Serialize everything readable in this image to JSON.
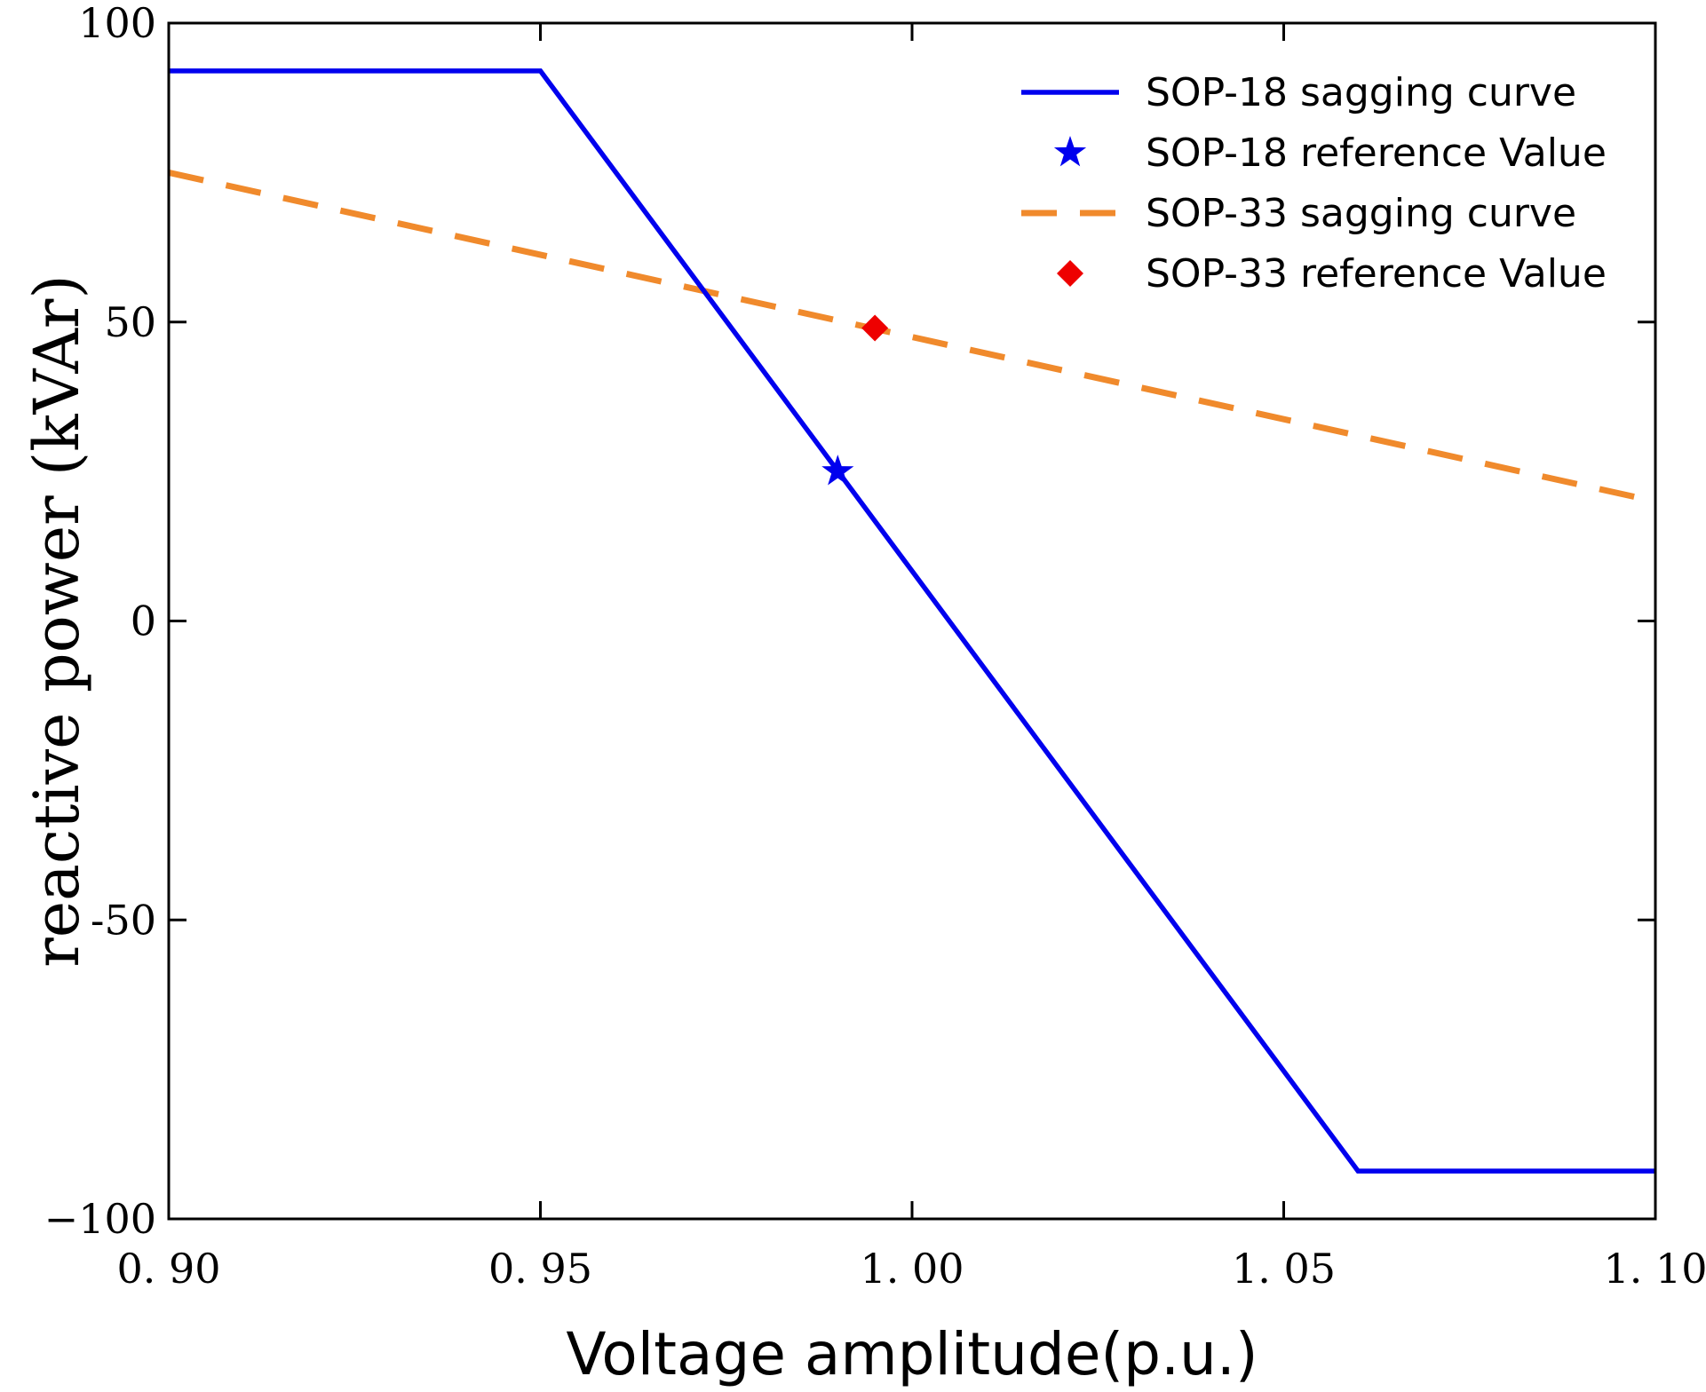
{
  "chart_data": {
    "type": "line",
    "title": "",
    "xlabel": "Voltage amplitude(p.u.)",
    "ylabel": "reactive power (kVAr)",
    "xlim": [
      0.9,
      1.1
    ],
    "ylim": [
      -100,
      100
    ],
    "grid": false,
    "legend_position": "top-right",
    "x_ticks": [
      {
        "value": 0.9,
        "label": "0. 90"
      },
      {
        "value": 0.95,
        "label": "0. 95"
      },
      {
        "value": 1.0,
        "label": "1. 00"
      },
      {
        "value": 1.05,
        "label": "1. 05"
      },
      {
        "value": 1.1,
        "label": "1. 10"
      }
    ],
    "y_ticks": [
      {
        "value": 100,
        "label": "100"
      },
      {
        "value": 50,
        "label": "50"
      },
      {
        "value": 0,
        "label": "0"
      },
      {
        "value": -50,
        "label": "-50"
      },
      {
        "value": -100,
        "label": "−100"
      }
    ],
    "series": [
      {
        "name": "SOP-18 sagging curve",
        "kind": "line",
        "style": "solid",
        "color": "#0000ee",
        "x": [
          0.9,
          0.95,
          1.06,
          1.1
        ],
        "y": [
          92,
          92,
          -92,
          -92
        ]
      },
      {
        "name": "SOP-18 reference Value",
        "kind": "marker",
        "marker": "star",
        "color": "#0000ee",
        "x": [
          0.99
        ],
        "y": [
          25
        ]
      },
      {
        "name": "SOP-33 sagging curve",
        "kind": "line",
        "style": "dashed",
        "color": "#f08a2c",
        "x": [
          0.9,
          1.1
        ],
        "y": [
          75,
          20
        ]
      },
      {
        "name": "SOP-33 reference Value",
        "kind": "marker",
        "marker": "diamond",
        "color": "#ee0000",
        "x": [
          0.995
        ],
        "y": [
          49
        ]
      }
    ]
  }
}
